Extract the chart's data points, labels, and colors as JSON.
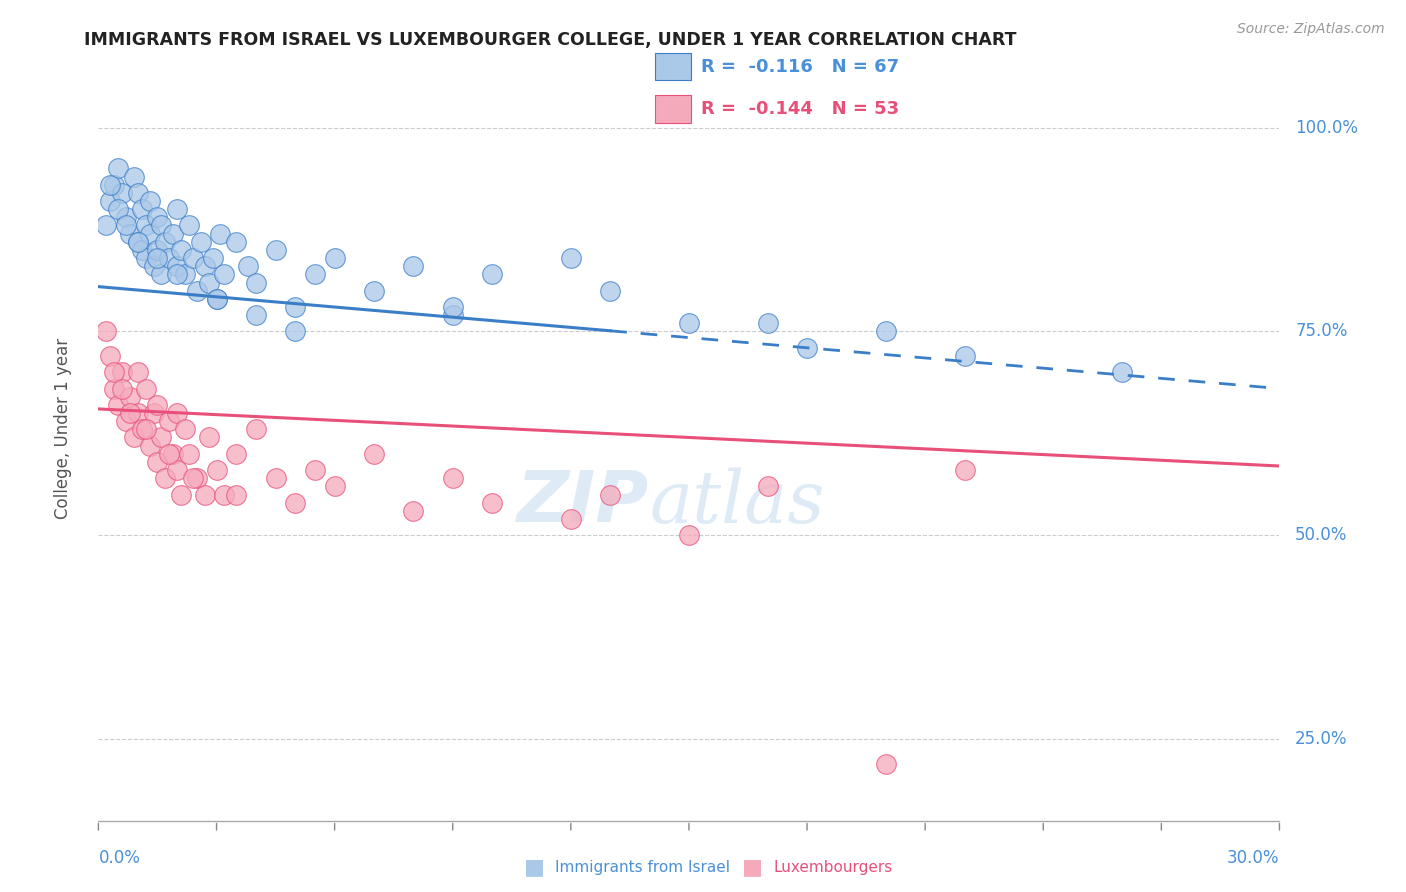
{
  "title": "IMMIGRANTS FROM ISRAEL VS LUXEMBOURGER COLLEGE, UNDER 1 YEAR CORRELATION CHART",
  "source_text": "Source: ZipAtlas.com",
  "ylabel": "College, Under 1 year",
  "xlim": [
    0.0,
    30.0
  ],
  "ylim": [
    15.0,
    108.0
  ],
  "yticks": [
    25.0,
    50.0,
    75.0,
    100.0
  ],
  "ytick_labels": [
    "25.0%",
    "50.0%",
    "75.0%",
    "100.0%"
  ],
  "legend_label1": "Immigrants from Israel",
  "legend_label2": "Luxembourgers",
  "series1_color": "#aac8e8",
  "series2_color": "#f5aabb",
  "trendline1_color": "#3a7ec8",
  "trendline2_color": "#e8507a",
  "watermark_zip": "ZIP",
  "watermark_atlas": "atlas",
  "background_color": "#ffffff",
  "grid_color": "#cccccc",
  "text_color_blue": "#4a90d9",
  "text_color_dark": "#333333",
  "legend_r1": "R =  -0.116",
  "legend_n1": "N = 67",
  "legend_r2": "R =  -0.144",
  "legend_n2": "N = 53",
  "blue_trend_y0": 80.5,
  "blue_trend_y30": 68.0,
  "blue_solid_xend": 13.0,
  "pink_trend_y0": 65.5,
  "pink_trend_y30": 58.5,
  "blue_x": [
    0.2,
    0.3,
    0.4,
    0.5,
    0.6,
    0.7,
    0.8,
    0.9,
    1.0,
    1.0,
    1.1,
    1.1,
    1.2,
    1.2,
    1.3,
    1.3,
    1.4,
    1.5,
    1.5,
    1.6,
    1.6,
    1.7,
    1.8,
    1.9,
    2.0,
    2.0,
    2.1,
    2.2,
    2.3,
    2.4,
    2.5,
    2.6,
    2.7,
    2.8,
    2.9,
    3.0,
    3.1,
    3.2,
    3.5,
    3.8,
    4.0,
    4.5,
    5.0,
    5.5,
    6.0,
    7.0,
    8.0,
    9.0,
    10.0,
    12.0,
    13.0,
    15.0,
    18.0,
    20.0,
    22.0,
    26.0,
    0.3,
    0.5,
    0.7,
    1.0,
    1.5,
    2.0,
    3.0,
    4.0,
    5.0,
    9.0,
    17.0
  ],
  "blue_y": [
    88,
    91,
    93,
    95,
    92,
    89,
    87,
    94,
    86,
    92,
    85,
    90,
    88,
    84,
    91,
    87,
    83,
    89,
    85,
    88,
    82,
    86,
    84,
    87,
    83,
    90,
    85,
    82,
    88,
    84,
    80,
    86,
    83,
    81,
    84,
    79,
    87,
    82,
    86,
    83,
    81,
    85,
    78,
    82,
    84,
    80,
    83,
    77,
    82,
    84,
    80,
    76,
    73,
    75,
    72,
    70,
    93,
    90,
    88,
    86,
    84,
    82,
    79,
    77,
    75,
    78,
    76
  ],
  "pink_x": [
    0.3,
    0.4,
    0.5,
    0.6,
    0.7,
    0.8,
    0.9,
    1.0,
    1.0,
    1.1,
    1.2,
    1.3,
    1.4,
    1.5,
    1.5,
    1.6,
    1.7,
    1.8,
    1.9,
    2.0,
    2.0,
    2.1,
    2.2,
    2.3,
    2.5,
    2.7,
    2.8,
    3.0,
    3.2,
    3.5,
    4.0,
    4.5,
    5.0,
    5.5,
    6.0,
    7.0,
    8.0,
    9.0,
    10.0,
    12.0,
    13.0,
    15.0,
    17.0,
    20.0,
    22.0,
    0.2,
    0.4,
    0.6,
    0.8,
    1.2,
    1.8,
    2.4,
    3.5
  ],
  "pink_y": [
    72,
    68,
    66,
    70,
    64,
    67,
    62,
    65,
    70,
    63,
    68,
    61,
    65,
    59,
    66,
    62,
    57,
    64,
    60,
    58,
    65,
    55,
    63,
    60,
    57,
    55,
    62,
    58,
    55,
    60,
    63,
    57,
    54,
    58,
    56,
    60,
    53,
    57,
    54,
    52,
    55,
    50,
    56,
    22,
    58,
    75,
    70,
    68,
    65,
    63,
    60,
    57,
    55
  ]
}
